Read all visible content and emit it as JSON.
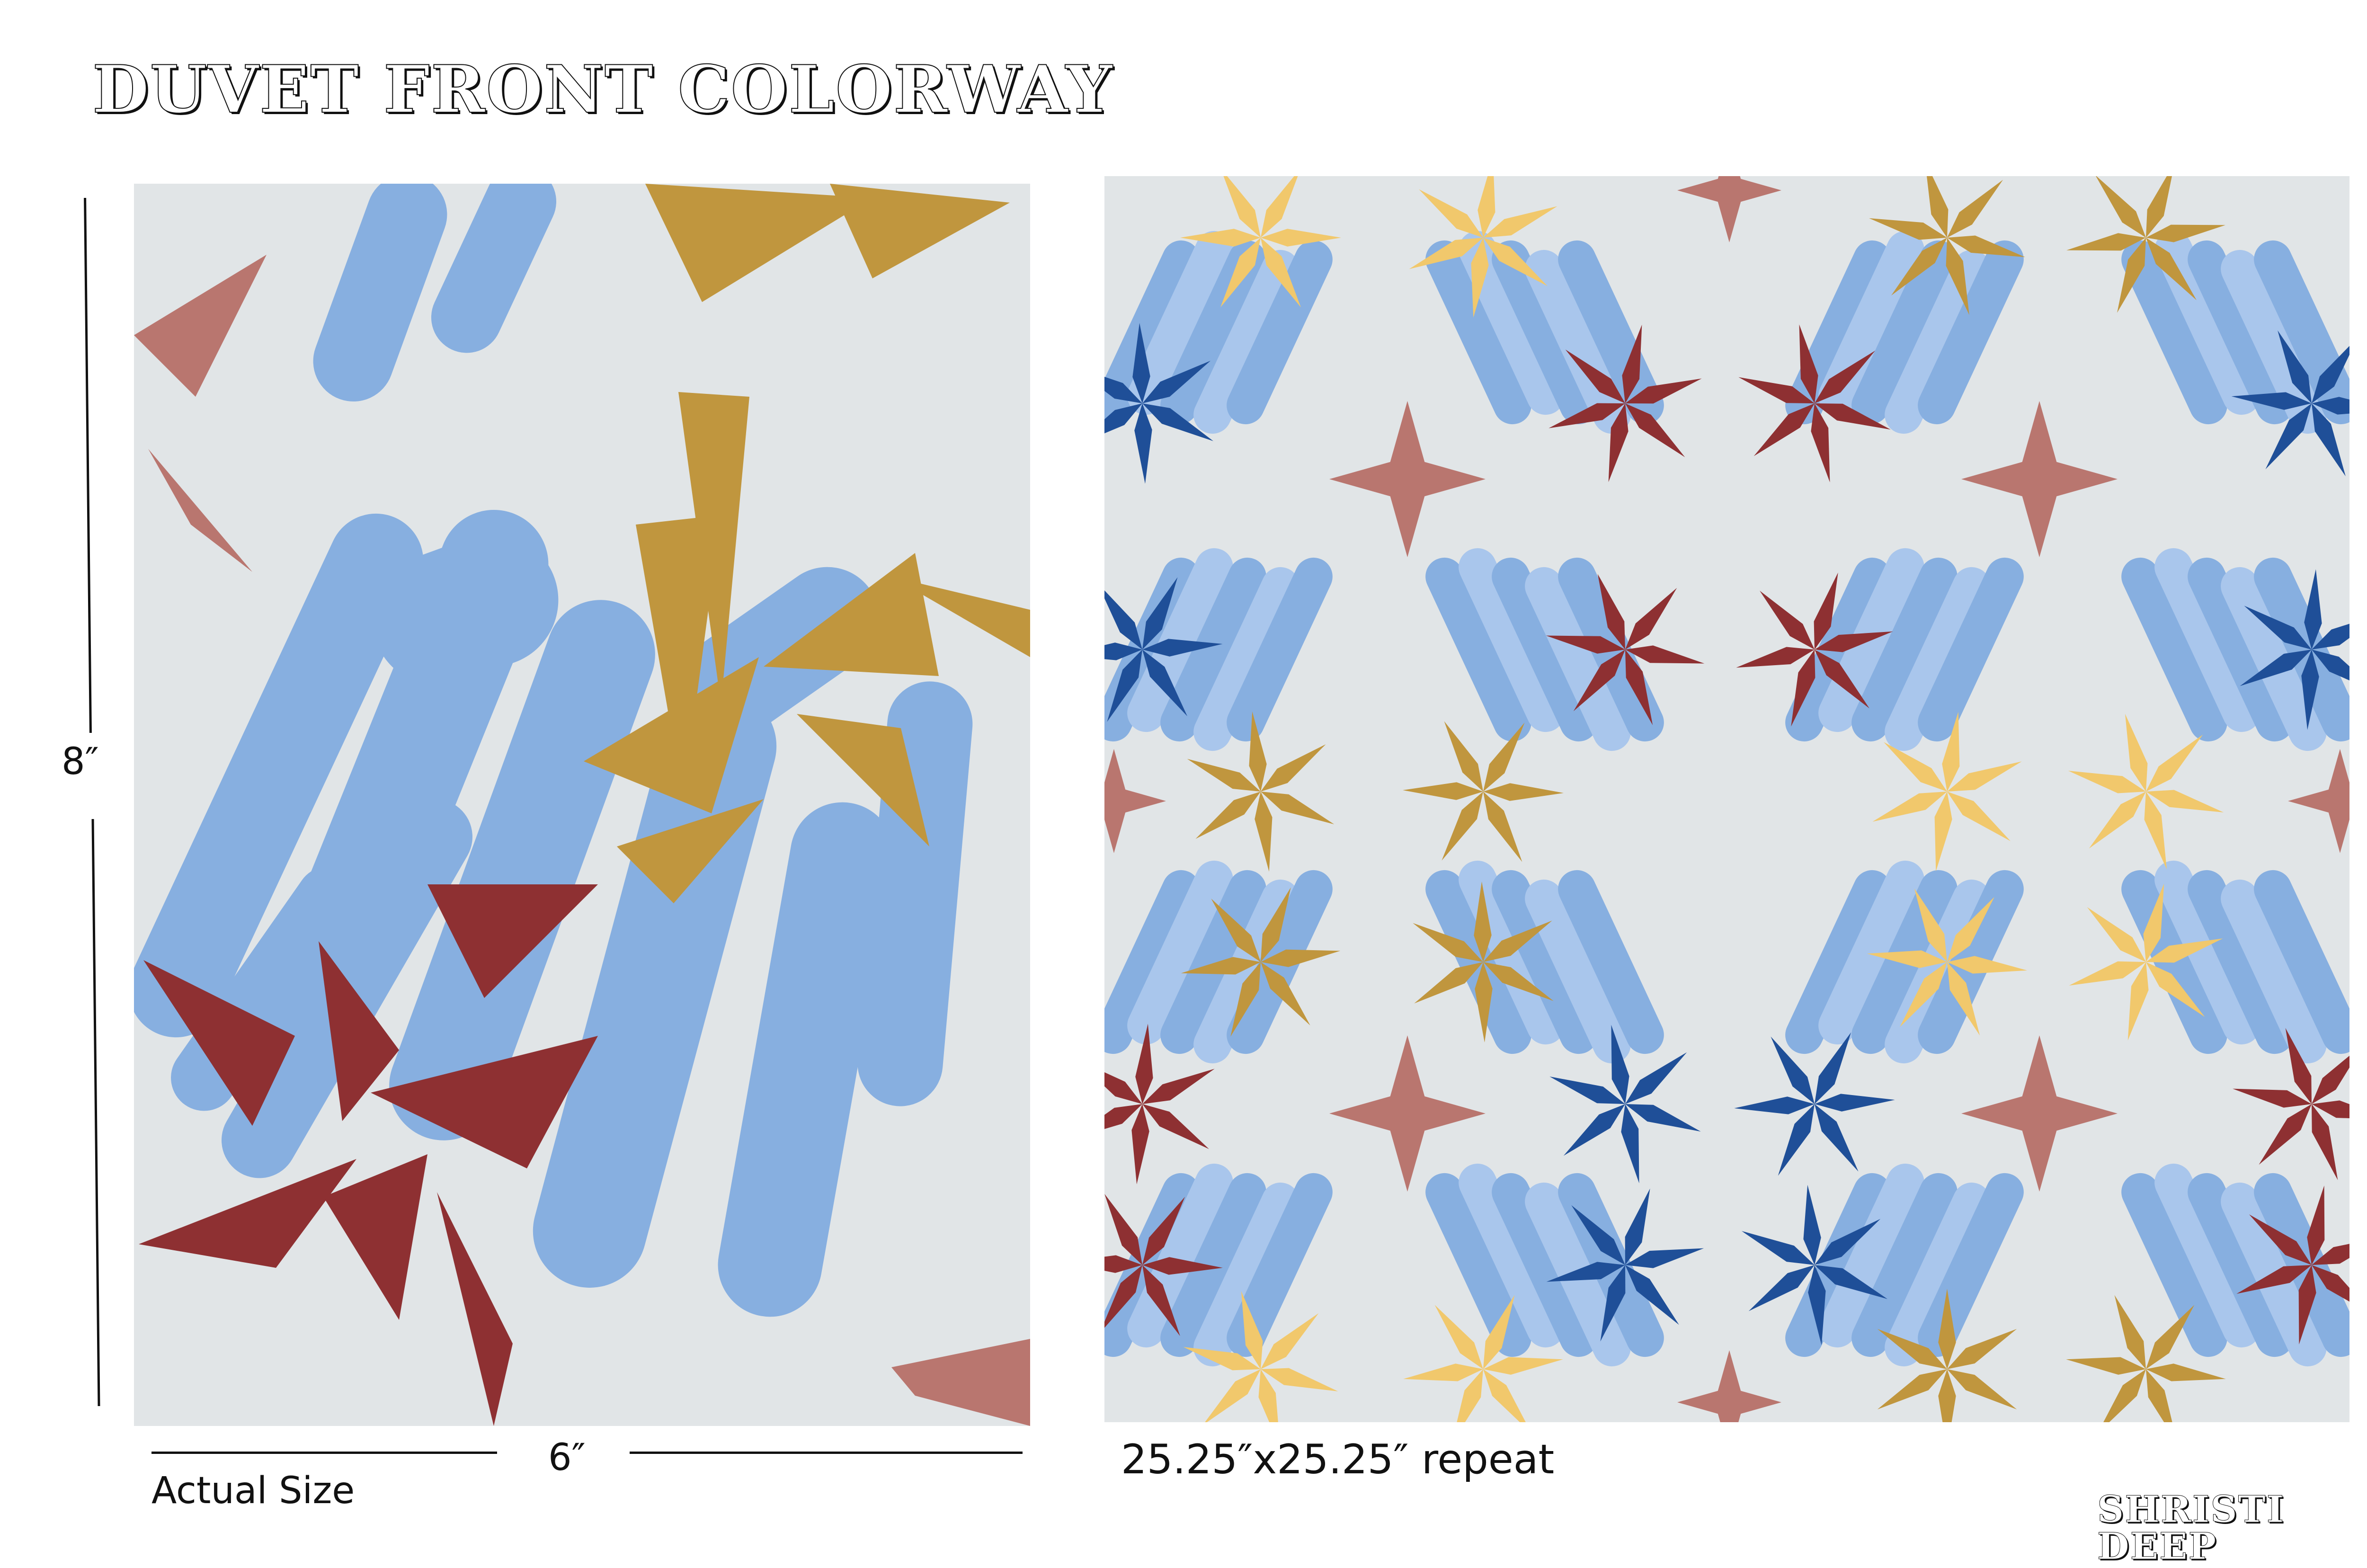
{
  "header": {
    "title": "DUVET FRONT COLORWAY"
  },
  "actual_swatch": {
    "height_label": "8″",
    "width_label": "6″",
    "caption": "Actual Size"
  },
  "repeat_swatch": {
    "caption": "25.25″x25.25″ repeat"
  },
  "footer": {
    "designer": "SHRISTI DEEP"
  },
  "colors": {
    "background": "#e1e5e7",
    "light_blue": "#87afe0",
    "pale_blue": "#a9c6ec",
    "navy": "#1f4f98",
    "mustard": "#c0963e",
    "pale_yellow": "#f1c86c",
    "crimson": "#8e3032",
    "dusty_rose": "#b9766f"
  }
}
